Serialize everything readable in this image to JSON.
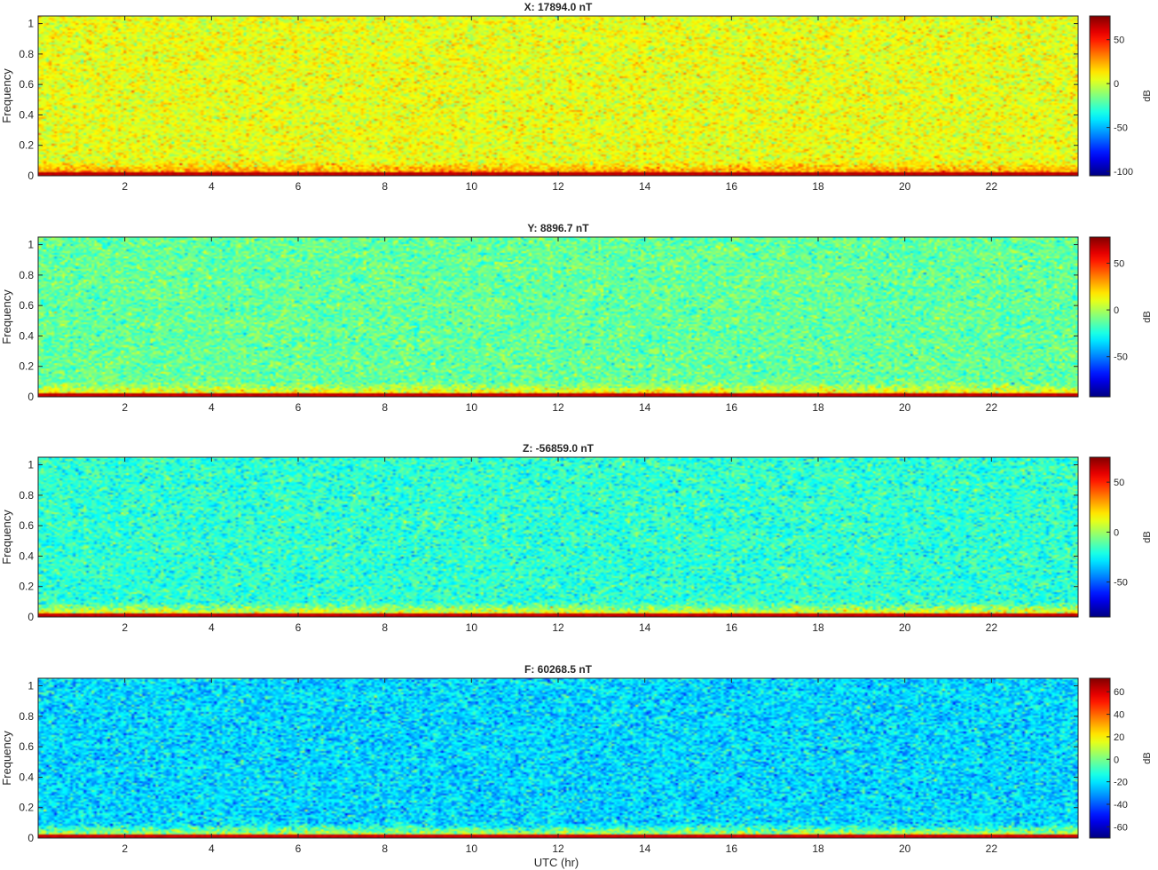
{
  "figure": {
    "xlabel": "UTC (hr)"
  },
  "chart_data": [
    {
      "type": "heatmap",
      "title": "X: 17894.0 nT",
      "ylabel": "Frequency",
      "xlabel": "",
      "xlim": [
        0,
        24
      ],
      "ylim": [
        0,
        1.05
      ],
      "xticks": [
        2,
        4,
        6,
        8,
        10,
        12,
        14,
        16,
        18,
        20,
        22
      ],
      "yticks": [
        0,
        0.2,
        0.4,
        0.6,
        0.8,
        1
      ],
      "colormap": "jet",
      "colorbar": {
        "label": "dB",
        "range": [
          -105,
          77
        ],
        "ticks": [
          -100,
          -50,
          0,
          50
        ]
      },
      "background_level_db": 5,
      "band_level_db": 35
    },
    {
      "type": "heatmap",
      "title": "Y: 8896.7 nT",
      "ylabel": "Frequency",
      "xlabel": "",
      "xlim": [
        0,
        24
      ],
      "ylim": [
        0,
        1.05
      ],
      "xticks": [
        2,
        4,
        6,
        8,
        10,
        12,
        14,
        16,
        18,
        20,
        22
      ],
      "yticks": [
        0,
        0.2,
        0.4,
        0.6,
        0.8,
        1
      ],
      "colormap": "jet",
      "colorbar": {
        "label": "dB",
        "range": [
          -93,
          78
        ],
        "ticks": [
          -50,
          0,
          50
        ]
      },
      "background_level_db": -12,
      "band_level_db": 25
    },
    {
      "type": "heatmap",
      "title": "Z: -56859.0 nT",
      "ylabel": "Frequency",
      "xlabel": "",
      "xlim": [
        0,
        24
      ],
      "ylim": [
        0,
        1.05
      ],
      "xticks": [
        2,
        4,
        6,
        8,
        10,
        12,
        14,
        16,
        18,
        20,
        22
      ],
      "yticks": [
        0,
        0.2,
        0.4,
        0.6,
        0.8,
        1
      ],
      "colormap": "jet",
      "colorbar": {
        "label": "dB",
        "range": [
          -85,
          75
        ],
        "ticks": [
          -50,
          0,
          50
        ]
      },
      "background_level_db": -18,
      "band_level_db": 25
    },
    {
      "type": "heatmap",
      "title": "F: 60268.5 nT",
      "ylabel": "Frequency",
      "xlabel": "UTC (hr)",
      "xlim": [
        0,
        24
      ],
      "ylim": [
        0,
        1.05
      ],
      "xticks": [
        2,
        4,
        6,
        8,
        10,
        12,
        14,
        16,
        18,
        20,
        22
      ],
      "yticks": [
        0,
        0.2,
        0.4,
        0.6,
        0.8,
        1
      ],
      "colormap": "jet",
      "colorbar": {
        "label": "dB",
        "range": [
          -70,
          72
        ],
        "ticks": [
          -60,
          -40,
          -20,
          0,
          20,
          40,
          60
        ]
      },
      "background_level_db": -22,
      "band_level_db": 20
    }
  ]
}
